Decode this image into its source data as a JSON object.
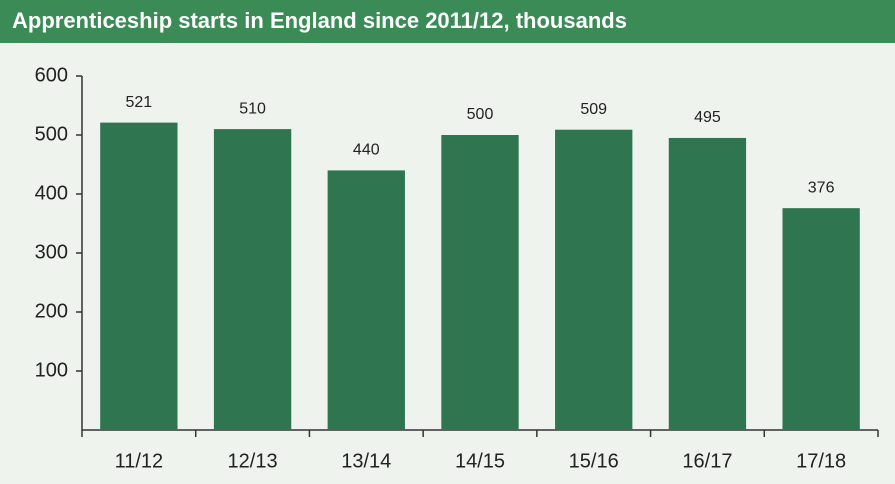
{
  "chart_data": {
    "type": "bar",
    "title": "Apprenticeship starts in England since 2011/12, thousands",
    "categories": [
      "11/12",
      "12/13",
      "13/14",
      "14/15",
      "15/16",
      "16/17",
      "17/18"
    ],
    "values": [
      521,
      510,
      440,
      500,
      509,
      495,
      376
    ],
    "color": "#2e7550",
    "ylim": [
      0,
      600
    ],
    "yticks": [
      100,
      200,
      300,
      400,
      500,
      600
    ],
    "grid": false
  }
}
